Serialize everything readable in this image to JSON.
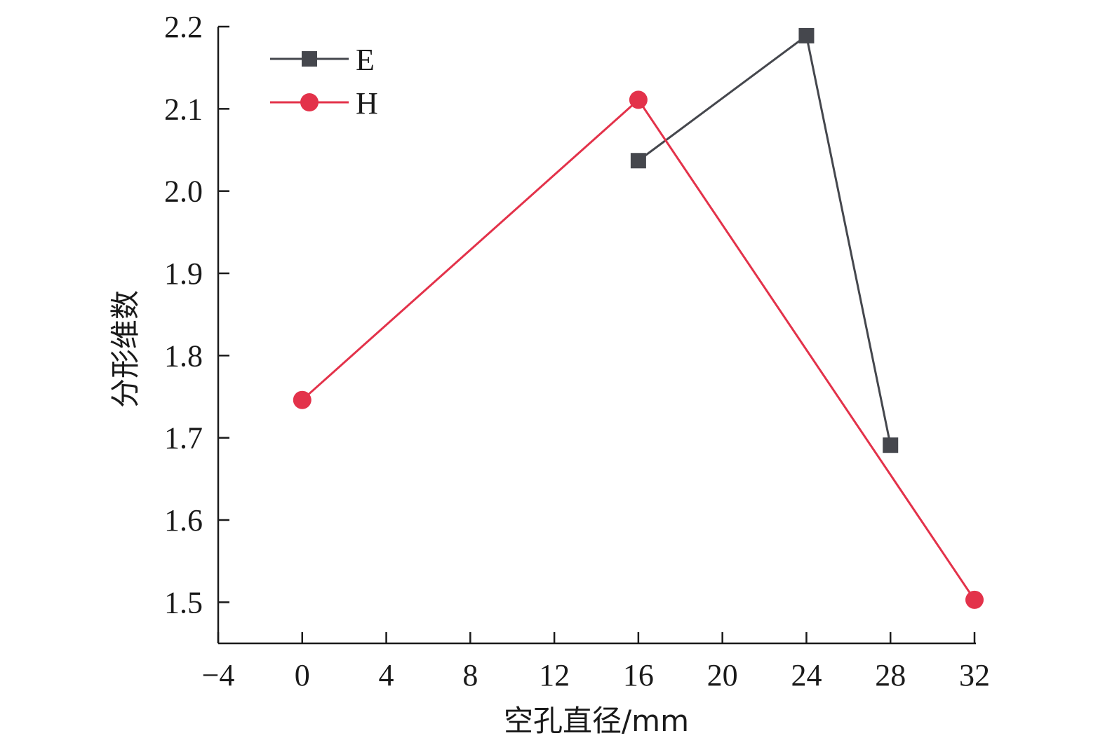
{
  "chart_data": {
    "type": "line",
    "title": "",
    "xlabel": "空孔直径/mm",
    "ylabel": "分形维数",
    "xlim": [
      -4,
      32
    ],
    "ylim": [
      1.45,
      2.2
    ],
    "xticks": [
      -4,
      0,
      4,
      8,
      12,
      16,
      20,
      24,
      28,
      32
    ],
    "xtick_labels": [
      "−4",
      "0",
      "4",
      "8",
      "12",
      "16",
      "20",
      "24",
      "28",
      "32"
    ],
    "yticks": [
      1.5,
      1.6,
      1.7,
      1.8,
      1.9,
      2.0,
      2.1,
      2.2
    ],
    "ytick_labels": [
      "1.5",
      "1.6",
      "1.7",
      "1.8",
      "1.9",
      "2.0",
      "2.1",
      "2.2"
    ],
    "grid": false,
    "legend_position": "top-left",
    "series": [
      {
        "name": "E",
        "marker": "square",
        "color": "#45474d",
        "x": [
          16,
          24,
          28
        ],
        "y": [
          2.037,
          2.189,
          1.691
        ]
      },
      {
        "name": "H",
        "marker": "circle",
        "color": "#e3324a",
        "x": [
          0,
          16,
          32
        ],
        "y": [
          1.746,
          2.111,
          1.503
        ]
      }
    ]
  }
}
